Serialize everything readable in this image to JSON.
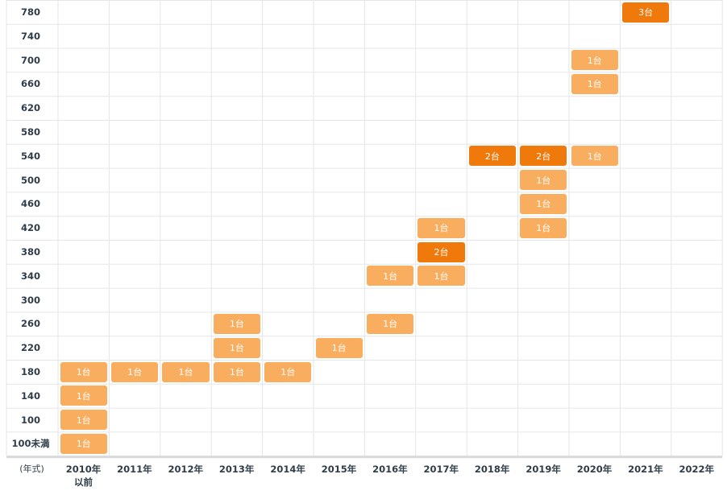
{
  "chart_data": {
    "type": "heatmap",
    "x_axis_unit": "(年式)",
    "x_labels": [
      "2010年",
      "2011年",
      "2012年",
      "2013年",
      "2014年",
      "2015年",
      "2016年",
      "2017年",
      "2018年",
      "2019年",
      "2020年",
      "2021年",
      "2022年"
    ],
    "x_label_sub": [
      "以前",
      "",
      "",
      "",
      "",
      "",
      "",
      "",
      "",
      "",
      "",
      "",
      ""
    ],
    "y_labels": [
      "780",
      "740",
      "700",
      "660",
      "620",
      "580",
      "540",
      "500",
      "460",
      "420",
      "380",
      "340",
      "300",
      "260",
      "220",
      "180",
      "140",
      "100",
      "100未満"
    ],
    "unit_suffix": "台",
    "cells": [
      {
        "x": "2021年",
        "y": "780",
        "count": 3
      },
      {
        "x": "2020年",
        "y": "700",
        "count": 1
      },
      {
        "x": "2020年",
        "y": "660",
        "count": 1
      },
      {
        "x": "2018年",
        "y": "540",
        "count": 2
      },
      {
        "x": "2019年",
        "y": "540",
        "count": 2
      },
      {
        "x": "2020年",
        "y": "540",
        "count": 1
      },
      {
        "x": "2019年",
        "y": "500",
        "count": 1
      },
      {
        "x": "2019年",
        "y": "460",
        "count": 1
      },
      {
        "x": "2017年",
        "y": "420",
        "count": 1
      },
      {
        "x": "2019年",
        "y": "420",
        "count": 1
      },
      {
        "x": "2017年",
        "y": "380",
        "count": 2
      },
      {
        "x": "2016年",
        "y": "340",
        "count": 1
      },
      {
        "x": "2017年",
        "y": "340",
        "count": 1
      },
      {
        "x": "2013年",
        "y": "260",
        "count": 1
      },
      {
        "x": "2016年",
        "y": "260",
        "count": 1
      },
      {
        "x": "2013年",
        "y": "220",
        "count": 1
      },
      {
        "x": "2015年",
        "y": "220",
        "count": 1
      },
      {
        "x": "2010年",
        "y": "180",
        "count": 1
      },
      {
        "x": "2011年",
        "y": "180",
        "count": 1
      },
      {
        "x": "2012年",
        "y": "180",
        "count": 1
      },
      {
        "x": "2013年",
        "y": "180",
        "count": 1
      },
      {
        "x": "2014年",
        "y": "180",
        "count": 1
      },
      {
        "x": "2010年",
        "y": "140",
        "count": 1
      },
      {
        "x": "2010年",
        "y": "100",
        "count": 1
      },
      {
        "x": "2010年",
        "y": "100未満",
        "count": 1
      }
    ],
    "colors": {
      "single": "#f9ad5e",
      "multiple": "#ef7a0b",
      "grid": "#e6e6e6",
      "axis": "#d9d9d9"
    },
    "grid": true
  }
}
